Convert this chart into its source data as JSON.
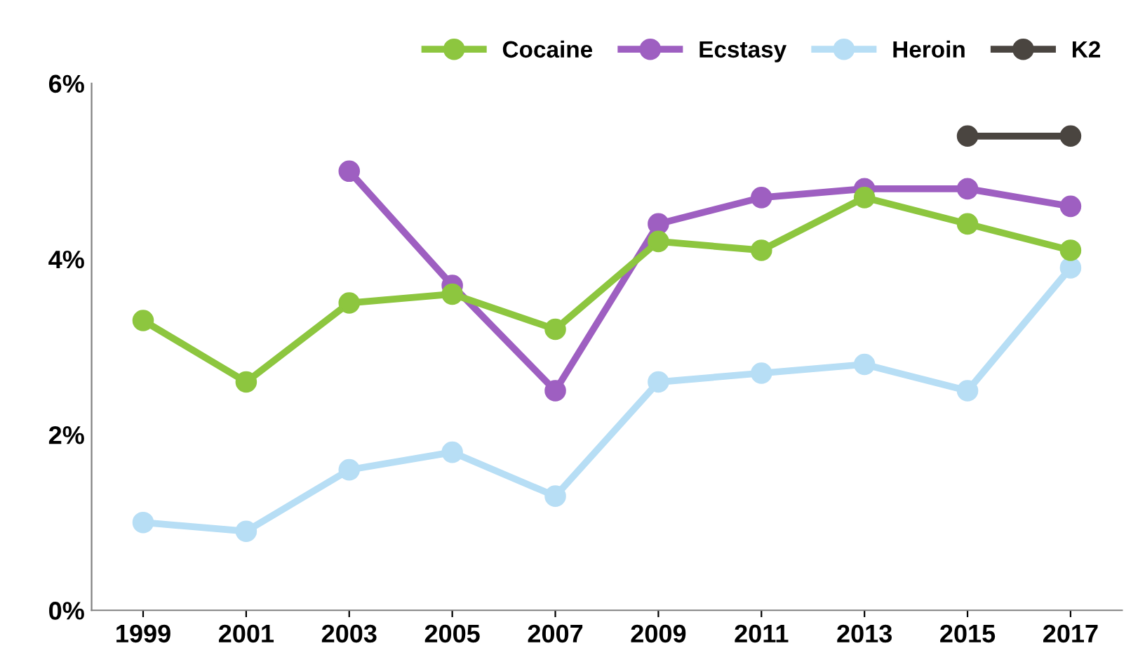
{
  "chart_data": {
    "type": "line",
    "categories": [
      "1999",
      "2001",
      "2003",
      "2005",
      "2007",
      "2009",
      "2011",
      "2013",
      "2015",
      "2017"
    ],
    "series": [
      {
        "name": "Cocaine",
        "color": "#8dc63f",
        "values": [
          3.3,
          2.6,
          3.5,
          3.6,
          3.2,
          4.2,
          4.1,
          4.7,
          4.4,
          4.1
        ]
      },
      {
        "name": "Ecstasy",
        "color": "#9e5fc1",
        "values": [
          null,
          null,
          5.0,
          3.7,
          2.5,
          4.4,
          4.7,
          4.8,
          4.8,
          4.6
        ]
      },
      {
        "name": "Heroin",
        "color": "#b7def5",
        "values": [
          1.0,
          0.9,
          1.6,
          1.8,
          1.3,
          2.6,
          2.7,
          2.8,
          2.5,
          3.9
        ]
      },
      {
        "name": "K2",
        "color": "#4a4540",
        "values": [
          null,
          null,
          null,
          null,
          null,
          null,
          null,
          null,
          5.4,
          5.4
        ]
      }
    ],
    "ylim": [
      0,
      6
    ],
    "yticks": [
      {
        "value": 0,
        "label": "0%"
      },
      {
        "value": 2,
        "label": "2%"
      },
      {
        "value": 4,
        "label": "4%"
      },
      {
        "value": 6,
        "label": "6%"
      }
    ],
    "grid": false,
    "legend": "top right",
    "marker": "circle",
    "line_style": "solid"
  }
}
